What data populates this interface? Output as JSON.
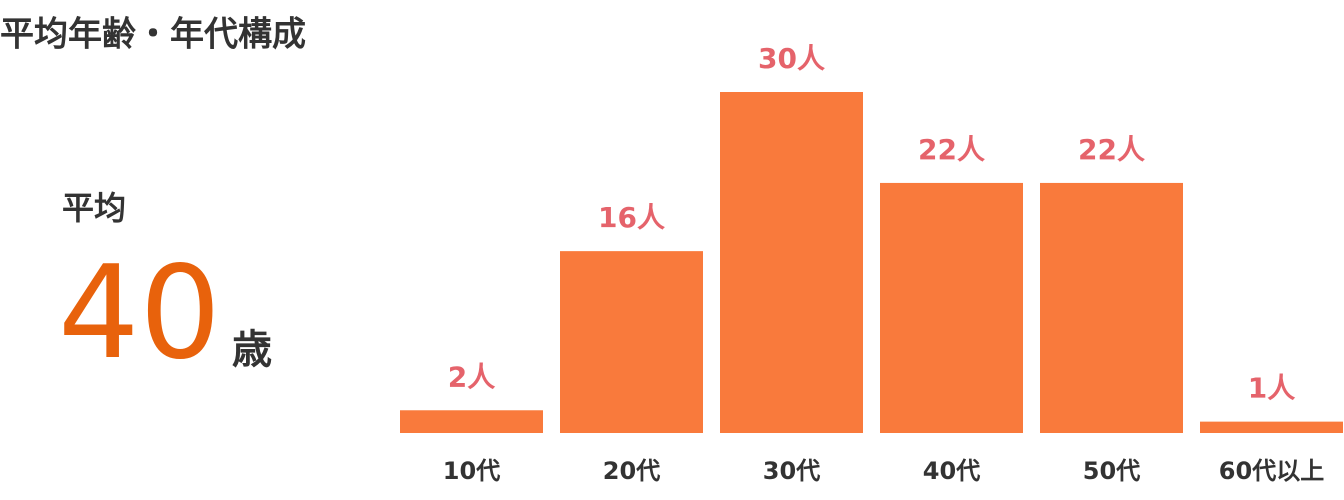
{
  "title": "平均年齢・年代構成",
  "summary": {
    "label": "平均",
    "value": 40,
    "unit": "歳"
  },
  "chart_data": {
    "type": "bar",
    "categories": [
      "10代",
      "20代",
      "30代",
      "40代",
      "50代",
      "60代以上"
    ],
    "values": [
      2,
      16,
      30,
      22,
      22,
      1
    ],
    "value_labels": [
      "2人",
      "16人",
      "30人",
      "22人",
      "22人",
      "1人"
    ],
    "color": "#f97a3c",
    "ylim": [
      0,
      30
    ]
  }
}
